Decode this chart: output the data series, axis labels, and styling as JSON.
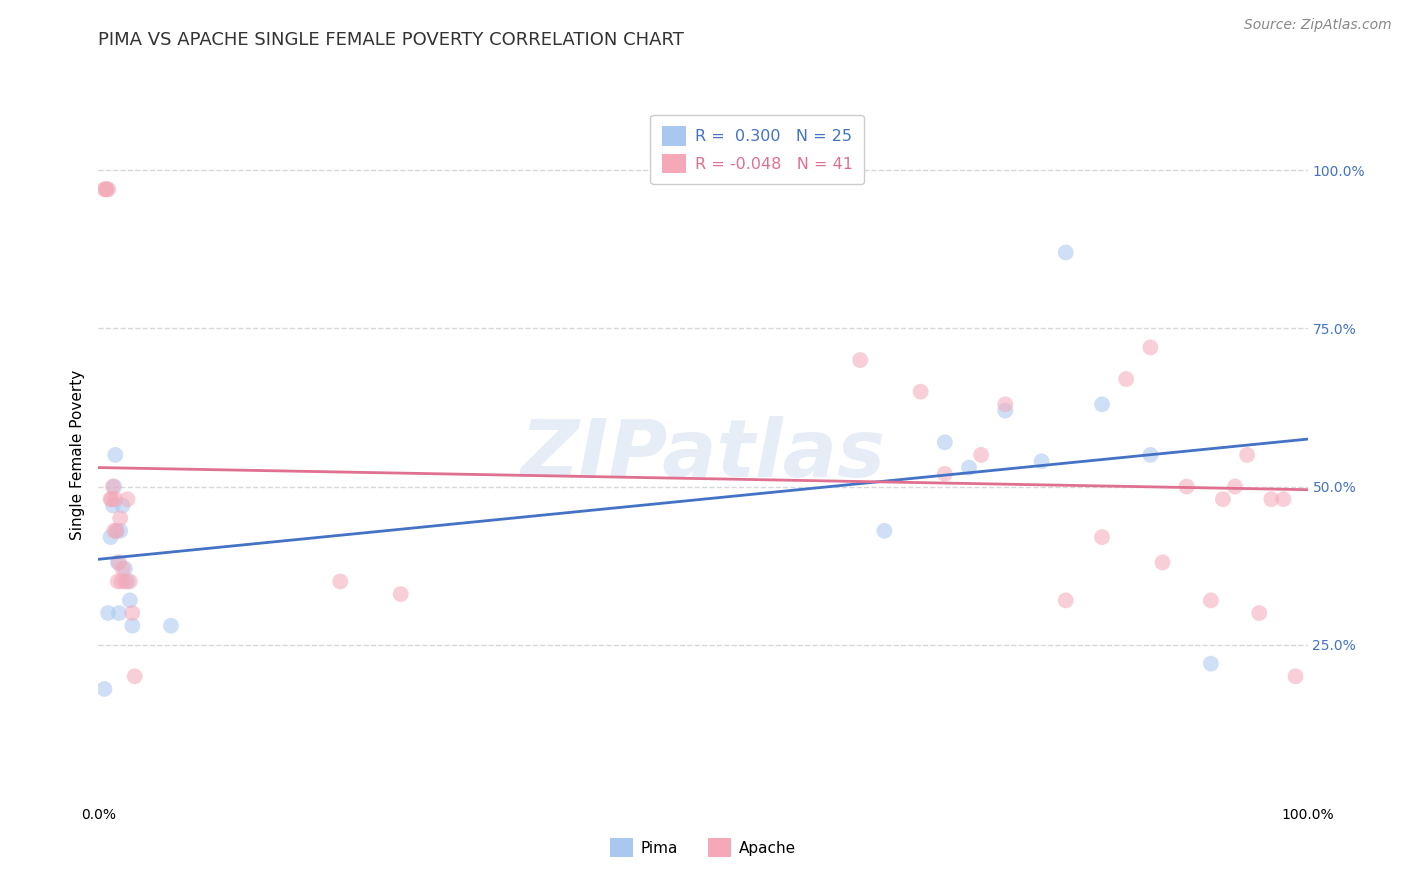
{
  "title": "PIMA VS APACHE SINGLE FEMALE POVERTY CORRELATION CHART",
  "source": "Source: ZipAtlas.com",
  "ylabel": "Single Female Poverty",
  "legend_pima": "Pima",
  "legend_apache": "Apache",
  "r_pima": 0.3,
  "n_pima": 25,
  "r_apache": -0.048,
  "n_apache": 41,
  "watermark": "ZIPatlas",
  "pima_color": "#a8c8f0",
  "apache_color": "#f4a8b8",
  "pima_line_color": "#4472c4",
  "apache_line_color": "#e07090",
  "pima_x": [
    0.005,
    0.008,
    0.01,
    0.012,
    0.013,
    0.014,
    0.015,
    0.016,
    0.017,
    0.018,
    0.02,
    0.022,
    0.024,
    0.026,
    0.028,
    0.06,
    0.65,
    0.7,
    0.72,
    0.75,
    0.78,
    0.8,
    0.83,
    0.87,
    0.92
  ],
  "pima_y": [
    0.18,
    0.3,
    0.42,
    0.47,
    0.5,
    0.55,
    0.43,
    0.38,
    0.3,
    0.43,
    0.47,
    0.37,
    0.35,
    0.32,
    0.28,
    0.28,
    0.43,
    0.57,
    0.53,
    0.62,
    0.54,
    0.87,
    0.63,
    0.55,
    0.22
  ],
  "apache_x": [
    0.005,
    0.006,
    0.007,
    0.008,
    0.01,
    0.011,
    0.012,
    0.013,
    0.014,
    0.015,
    0.016,
    0.017,
    0.018,
    0.019,
    0.02,
    0.022,
    0.024,
    0.026,
    0.028,
    0.03,
    0.2,
    0.25,
    0.63,
    0.68,
    0.7,
    0.73,
    0.75,
    0.8,
    0.83,
    0.85,
    0.87,
    0.88,
    0.9,
    0.92,
    0.93,
    0.94,
    0.95,
    0.96,
    0.97,
    0.98,
    0.99
  ],
  "apache_y": [
    0.97,
    0.97,
    0.97,
    0.97,
    0.48,
    0.48,
    0.5,
    0.43,
    0.48,
    0.43,
    0.35,
    0.38,
    0.45,
    0.35,
    0.37,
    0.35,
    0.48,
    0.35,
    0.3,
    0.2,
    0.35,
    0.33,
    0.7,
    0.65,
    0.52,
    0.55,
    0.63,
    0.32,
    0.42,
    0.67,
    0.72,
    0.38,
    0.5,
    0.32,
    0.48,
    0.5,
    0.55,
    0.3,
    0.48,
    0.48,
    0.2
  ],
  "xlim": [
    0.0,
    1.0
  ],
  "ylim": [
    0.0,
    1.1
  ],
  "background_color": "#ffffff",
  "grid_color": "#d8d8d8",
  "title_fontsize": 13,
  "axis_label_fontsize": 11,
  "tick_fontsize": 10,
  "source_fontsize": 10,
  "marker_size": 130,
  "marker_alpha": 0.55,
  "line_width": 2.0
}
